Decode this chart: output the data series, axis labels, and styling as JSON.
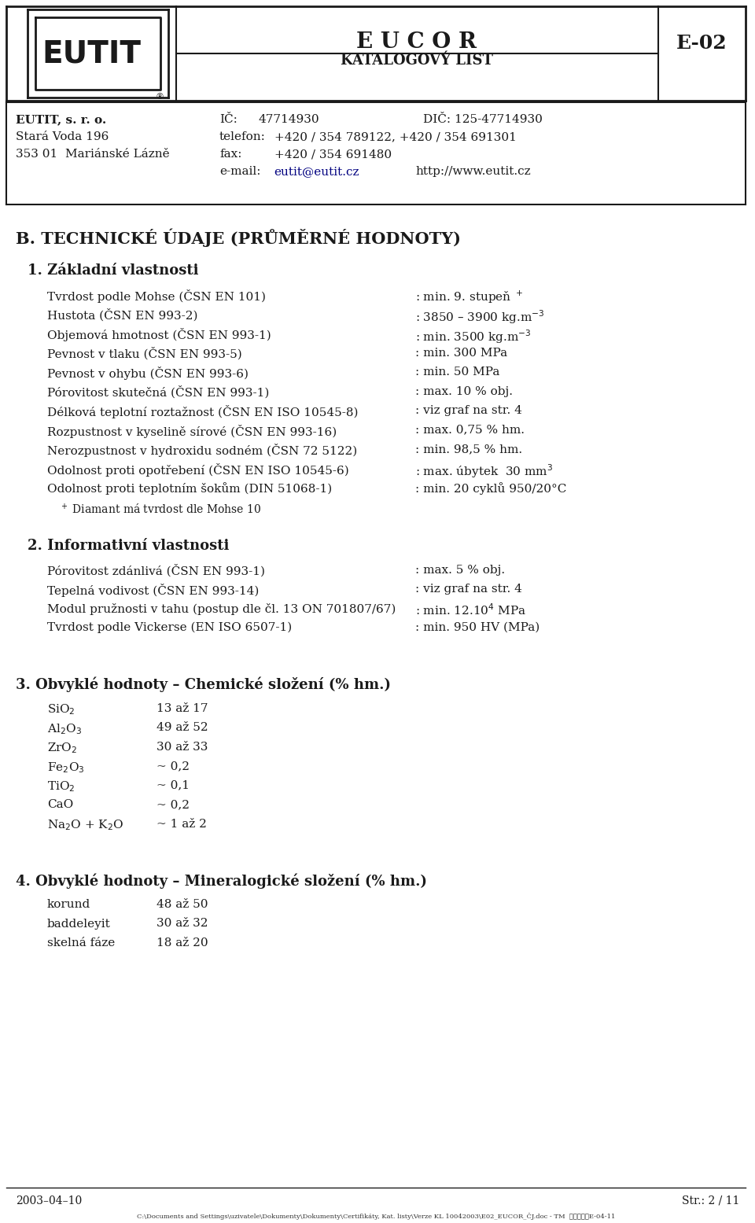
{
  "bg_color": "#ffffff",
  "text_color": "#1a1a1a",
  "header": {
    "company": "E U C O R",
    "subtitle": "KATALOGOVÝ LIST",
    "code": "E-02",
    "logo_text": "EUTIT",
    "address_lines": [
      [
        "EUTIT, s. r. o.",
        "IČ:   47714930",
        "DIČ: 125-47714930"
      ],
      [
        "Stará Voda 196",
        "telefon:  +420 / 354 789122, +420 / 354 691301"
      ],
      [
        "353 01  Mariánské Lázně",
        "fax:   +420 / 354 691480"
      ],
      [
        "",
        "e-mail:   eutit@eutit.cz       http://www.eutit.cz"
      ]
    ]
  },
  "section_b_title": "B. TECHNICKÉ ÚDAJE (PRŮMĚRNÉ HODNOTY)",
  "section1_title": "1. Základní vlastnosti",
  "section1_items": [
    [
      "Tvrdost podle Mohse (ČSN EN 101)",
      ": min. 9. stupeň $^+$"
    ],
    [
      "Hustota (ČSN EN 993-2)",
      ": 3850 – 3900 kg.m$^{-3}$"
    ],
    [
      "Objemová hmotnost (ČSN EN 993-1)",
      ": min. 3500 kg.m$^{-3}$"
    ],
    [
      "Pevnost v tlaku (ČSN EN 993-5)",
      ": min. 300 MPa"
    ],
    [
      "Pevnost v ohybu (ČSN EN 993-6)",
      ": min. 50 MPa"
    ],
    [
      "Pórovitost skutečná (ČSN EN 993-1)",
      ": max. 10 % obj."
    ],
    [
      "Délková teplotní roztažnost (ČSN EN ISO 10545-8)",
      ": viz graf na str. 4"
    ],
    [
      "Rozpustnost v kyselině sírové (ČSN EN 993-16)",
      ": max. 0,75 % hm."
    ],
    [
      "Nerozpustnost v hydroxidu sodném (ČSN 72 5122)",
      ": min. 98,5 % hm."
    ],
    [
      "Odolnost proti opotřebení (ČSN EN ISO 10545-6)",
      ": max. úbytek  30 mm$^3$"
    ],
    [
      "Odolnost proti teplotním šokům (DIN 51068-1)",
      ": min. 20 cyklů 950/20°C"
    ]
  ],
  "footnote1": "$^+$ Diamant má tvrdost dle Mohse 10",
  "section2_title": "2. Informativní vlastnosti",
  "section2_items": [
    [
      "Pórovitost zdánlivá (ČSN EN 993-1)",
      ": max. 5 % obj."
    ],
    [
      "Tepelná vodivost (ČSN EN 993-14)",
      ": viz graf na str. 4"
    ],
    [
      "Modul pružnosti v tahu (postup dle čl. 13 ON 701807/67)",
      ": min. 12.10$^4$ MPa"
    ],
    [
      "Tvrdost podle Vickerse (EN ISO 6507-1)",
      ": min. 950 HV (MPa)"
    ]
  ],
  "section3_title": "3. Obvyklé hodnoty – Chemické složení (% hm.)",
  "section3_items": [
    [
      "SiO$_2$",
      "13 až 17"
    ],
    [
      "Al$_2$O$_3$",
      "49 až 52"
    ],
    [
      "ZrO$_2$",
      "30 až 33"
    ],
    [
      "Fe$_2$O$_3$",
      "~ 0,2"
    ],
    [
      "TiO$_2$",
      "~ 0,1"
    ],
    [
      "CaO",
      "~ 0,2"
    ],
    [
      "Na$_2$O + K$_2$O",
      "~ 1 až 2"
    ]
  ],
  "section4_title": "4. Obvyklé hodnoty – Mineralogické složení (% hm.)",
  "section4_items": [
    [
      "korund",
      "48 až 50"
    ],
    [
      "baddeleyit",
      "30 až 32"
    ],
    [
      "skelná fáze",
      "18 až 20"
    ]
  ],
  "footer_left": "2003–04–10",
  "footer_right": "Str.: 2 / 11",
  "footer_path": "C:\\Documents and Settings\\uzivatele\\Dokumenty\\Dokumenty\\Certifikáty, Kat. listy\\Verze KL 10042003\\E02_EUCOR_ČJ.doc - TM  上午七上午E-04-11"
}
